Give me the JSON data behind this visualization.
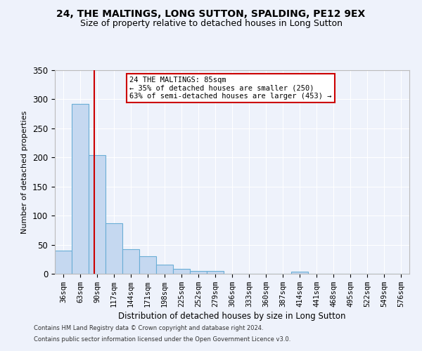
{
  "title1": "24, THE MALTINGS, LONG SUTTON, SPALDING, PE12 9EX",
  "title2": "Size of property relative to detached houses in Long Sutton",
  "xlabel": "Distribution of detached houses by size in Long Sutton",
  "ylabel": "Number of detached properties",
  "footer1": "Contains HM Land Registry data © Crown copyright and database right 2024.",
  "footer2": "Contains public sector information licensed under the Open Government Licence v3.0.",
  "bar_labels": [
    "36sqm",
    "63sqm",
    "90sqm",
    "117sqm",
    "144sqm",
    "171sqm",
    "198sqm",
    "225sqm",
    "252sqm",
    "279sqm",
    "306sqm",
    "333sqm",
    "360sqm",
    "387sqm",
    "414sqm",
    "441sqm",
    "468sqm",
    "495sqm",
    "522sqm",
    "549sqm",
    "576sqm"
  ],
  "bar_values": [
    40,
    292,
    204,
    87,
    42,
    30,
    16,
    9,
    5,
    5,
    0,
    0,
    0,
    0,
    4,
    0,
    0,
    0,
    0,
    0,
    0
  ],
  "bar_color": "#c5d8f0",
  "bar_edgecolor": "#6aaed6",
  "annotation_title": "24 THE MALTINGS: 85sqm",
  "annotation_line1": "← 35% of detached houses are smaller (250)",
  "annotation_line2": "63% of semi-detached houses are larger (453) →",
  "annotation_box_color": "#ffffff",
  "annotation_box_edgecolor": "#cc0000",
  "property_line_color": "#cc0000",
  "background_color": "#eef2fb",
  "grid_color": "#ffffff",
  "ylim": [
    0,
    350
  ],
  "title1_fontsize": 10,
  "title2_fontsize": 9
}
